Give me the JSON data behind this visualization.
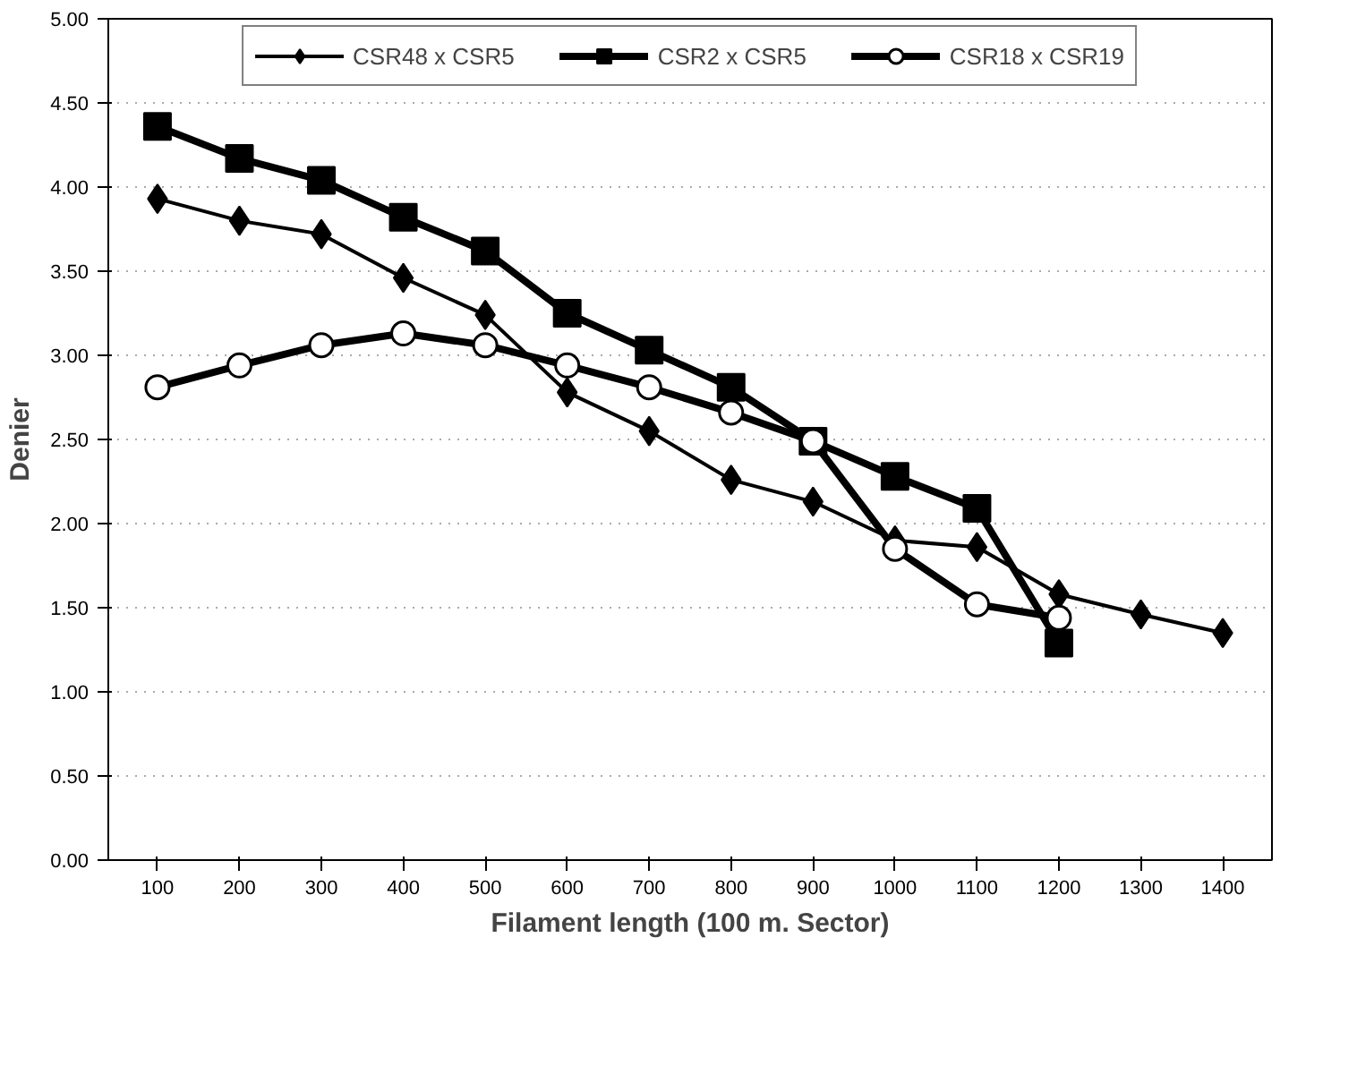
{
  "chart_data": {
    "type": "line",
    "xlabel": "Filament length (100 m. Sector)",
    "ylabel": "Denier",
    "categories": [
      "100",
      "200",
      "300",
      "400",
      "500",
      "600",
      "700",
      "800",
      "900",
      "1000",
      "1100",
      "1200",
      "1300",
      "1400"
    ],
    "series": [
      {
        "name": "CSR48 x CSR5",
        "color": "#000000",
        "marker": "diamond",
        "values": [
          3.93,
          3.8,
          3.72,
          3.46,
          3.24,
          2.78,
          2.55,
          2.26,
          2.13,
          1.9,
          1.86,
          1.58,
          1.46,
          1.35
        ]
      },
      {
        "name": "CSR2 x CSR5",
        "color": "#000000",
        "marker": "square",
        "values": [
          4.36,
          4.17,
          4.04,
          3.82,
          3.62,
          3.25,
          3.03,
          2.81,
          2.49,
          2.28,
          2.09,
          1.29,
          null,
          null
        ]
      },
      {
        "name": "CSR18 x CSR19",
        "color": "#000000",
        "marker": "circle",
        "values": [
          2.81,
          2.94,
          3.06,
          3.13,
          3.06,
          2.94,
          2.81,
          2.66,
          2.49,
          1.85,
          1.52,
          1.44,
          null,
          null
        ]
      }
    ],
    "ylim": [
      0,
      5
    ],
    "yticks": [
      {
        "value": 0,
        "label": "0.00"
      },
      {
        "value": 0.5,
        "label": "0.50"
      },
      {
        "value": 1,
        "label": "1.00"
      },
      {
        "value": 1.5,
        "label": "1.50"
      },
      {
        "value": 2,
        "label": "2.00"
      },
      {
        "value": 2.5,
        "label": "2.50"
      },
      {
        "value": 3,
        "label": "3.00"
      },
      {
        "value": 3.5,
        "label": "3.50"
      },
      {
        "value": 4,
        "label": "4.00"
      },
      {
        "value": 4.5,
        "label": "4.50"
      },
      {
        "value": 5,
        "label": "5.00"
      }
    ],
    "grid": "y",
    "legend": "top",
    "line_style": "solid"
  }
}
